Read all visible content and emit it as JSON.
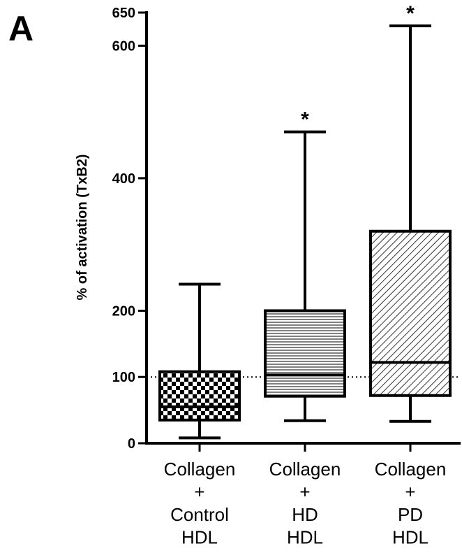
{
  "panel_label": "A",
  "chart_data": {
    "type": "boxplot",
    "ylabel": "% of activation (TxB2)",
    "yticks": [
      0,
      100,
      200,
      400,
      600,
      650
    ],
    "ylim": [
      0,
      650
    ],
    "reference_line": 100,
    "categories": [
      [
        "Collagen",
        "+",
        "Control",
        "HDL"
      ],
      [
        "Collagen",
        "+",
        "HD",
        "HDL"
      ],
      [
        "Collagen",
        "+",
        "PD",
        "HDL"
      ]
    ],
    "boxes": [
      {
        "whisker_low": 8,
        "q1": 35,
        "median": 55,
        "q3": 108,
        "whisker_high": 240,
        "pattern": "checker",
        "marker": ""
      },
      {
        "whisker_low": 34,
        "q1": 71,
        "median": 103,
        "q3": 200,
        "whisker_high": 470,
        "pattern": "horizontal",
        "marker": "*"
      },
      {
        "whisker_low": 33,
        "q1": 72,
        "median": 122,
        "q3": 320,
        "whisker_high": 630,
        "pattern": "diagonal",
        "marker": "*"
      }
    ]
  }
}
